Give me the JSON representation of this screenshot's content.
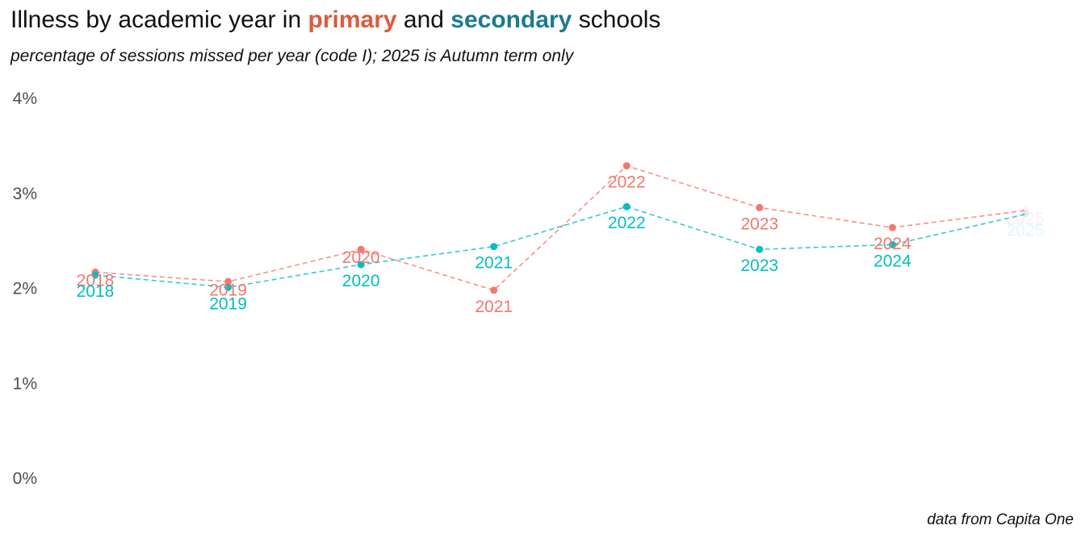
{
  "header": {
    "title_pre": "Illness by academic year in ",
    "title_primary": "primary",
    "title_mid": " and ",
    "title_secondary": "secondary",
    "title_post": " schools",
    "subtitle": "percentage of sessions missed per year (code I); 2025 is Autumn term only",
    "caption": "data from Capita One"
  },
  "chart_data": {
    "type": "line",
    "title": "Illness by academic year in primary and secondary schools",
    "subtitle": "percentage of sessions missed per year (code I); 2025 is Autumn term only",
    "caption": "data from Capita One",
    "x": [
      2018,
      2019,
      2020,
      2021,
      2022,
      2023,
      2024,
      2025
    ],
    "ylim": [
      0,
      4
    ],
    "yticks": [
      "0%",
      "1%",
      "2%",
      "3%",
      "4%"
    ],
    "y_unit": "%",
    "grid": false,
    "legend": "none (colored words in title)",
    "line_style": "dashed",
    "series": [
      {
        "name": "primary",
        "color": "#f8766d",
        "values": [
          2.17,
          2.07,
          2.41,
          1.98,
          3.29,
          2.85,
          2.64,
          2.82
        ]
      },
      {
        "name": "secondary",
        "color": "#00bfc4",
        "values": [
          2.14,
          2.01,
          2.25,
          2.44,
          2.86,
          2.41,
          2.46,
          2.78
        ]
      }
    ],
    "faded_x": 2025
  }
}
